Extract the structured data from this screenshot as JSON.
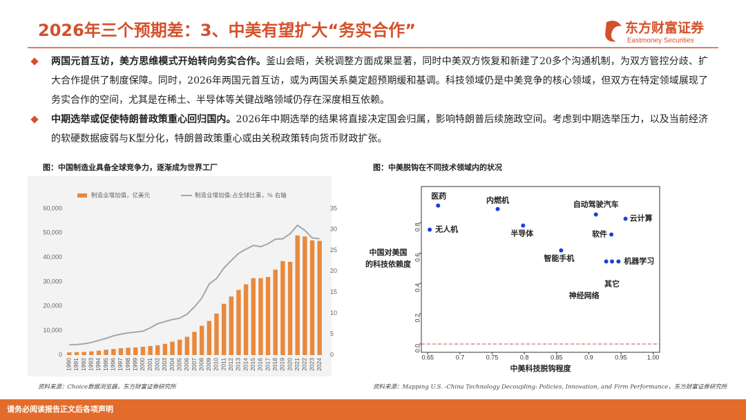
{
  "header": {
    "title": "2026年三个预期差：3、中美有望扩大“务实合作”",
    "logo": "东方财富证券",
    "logo_en": "Eastmoney Securities"
  },
  "bullets": [
    {
      "lead": "两国元首互访，美方思维模式开始转向务实合作。",
      "text": "釜山会晤，关税调整方面成果显著，同时中美双方恢复和新建了20多个沟通机制，为双方管控分歧、扩大合作提供了制度保障。同时，2026年两国元首互访，或为两国关系奠定超预期缓和基调。科技领域仍是中美竞争的核心领域，但双方在特定领域展现了务实合作的空间，尤其是在稀土、半导体等关键战略领域仍存在深度相互依赖。"
    },
    {
      "lead": "中期选举或促使特朗普政策重心回归国内。",
      "text": "2026年中期选举的结果将直接决定国会归属，影响特朗普后续施政空间。考虑到中期选举压力，以及当前经济的软硬数据疲弱与K型分化，特朗普政策重心或由关税政策转向货币财政扩张。"
    }
  ],
  "chart_data": [
    {
      "type": "combo",
      "title": "图：中国制造业具备全球竞争力，逐渐成为世界工厂",
      "source": "资料来源：Choice数据浏览器，东方财富证券研究所",
      "categories": [
        "1990",
        "1991",
        "1992",
        "1993",
        "1994",
        "1995",
        "1996",
        "1997",
        "1998",
        "1999",
        "2000",
        "2001",
        "2002",
        "2003",
        "2004",
        "2005",
        "2006",
        "2007",
        "2008",
        "2009",
        "2010",
        "2011",
        "2012",
        "2013",
        "2014",
        "2015",
        "2016",
        "2017",
        "2018",
        "2019",
        "2020",
        "2021",
        "2022",
        "2023",
        "2024"
      ],
      "series": [
        {
          "name": "制造业增加值，亿美元",
          "color": "#e8893c",
          "kind": "bar",
          "values": [
            1100,
            1200,
            1300,
            1500,
            1800,
            2200,
            2500,
            2800,
            3000,
            3100,
            3400,
            3700,
            4000,
            4600,
            5500,
            6300,
            7500,
            9500,
            12000,
            14000,
            17000,
            21000,
            24000,
            26700,
            29000,
            31500,
            31500,
            32000,
            35000,
            38500,
            38200,
            49000,
            48600,
            47000,
            46800
          ]
        },
        {
          "name": "制造业增加值:占全球比重，% 右轴",
          "color": "#a6a6a6",
          "kind": "line",
          "axis": "y2",
          "values": [
            2.5,
            2.5,
            2.7,
            3.0,
            3.5,
            4.0,
            4.6,
            5.0,
            5.3,
            5.5,
            5.7,
            6.5,
            7.5,
            8.0,
            8.5,
            8.8,
            9.8,
            11.5,
            13.6,
            17.0,
            18.3,
            20.8,
            22.6,
            24.3,
            25.3,
            26.2,
            25.9,
            26.6,
            27.7,
            27.8,
            29.0,
            31.0,
            29.8,
            28.0,
            27.8
          ]
        }
      ],
      "ylim": [
        0,
        60000
      ],
      "yticks": [
        0,
        {
          "value": 10000,
          "label": "10,000"
        },
        {
          "value": 20000,
          "label": "20,000"
        },
        {
          "value": 30000,
          "label": "30,000"
        },
        {
          "value": 40000,
          "label": "40,000"
        },
        {
          "value": 50000,
          "label": "50,000"
        },
        {
          "value": 60000,
          "label": "60,000"
        }
      ],
      "y2lim": [
        0,
        35
      ],
      "y2ticks": [
        0,
        5,
        10,
        15,
        20,
        25,
        30,
        35
      ]
    },
    {
      "type": "scatter",
      "title": "图：中美脱钩在不同技术领域内的状况",
      "source": "资料来源：Mapping U.S. -China Technology Decoupling: Policies, Innovation, and Firm Performance，东方财富证券研究所",
      "xlabel": "中美科技脱钩程度",
      "ylabel": [
        "中国对美国",
        "的科技依赖度"
      ],
      "labels": [
        "医药",
        "无人机",
        "内燃机",
        "半导体",
        "智能手机",
        "自动驾驶汽车",
        "云计算",
        "软件",
        "机器学习",
        "其它",
        "神经网络"
      ],
      "x": [
        0.666,
        0.653,
        0.7585,
        0.798,
        0.857,
        0.911,
        0.957,
        0.935,
        0.946,
        0.936,
        0.927
      ],
      "values": [
        0.914,
        0.755,
        0.891,
        0.782,
        0.618,
        0.855,
        0.827,
        0.723,
        0.545,
        0.545,
        0.545
      ],
      "color": "#1a3fd8",
      "hline": 0,
      "hline_color": "#e04040",
      "xlim": [
        0.64,
        1.01
      ],
      "xticks": [
        0.65,
        0.7,
        0.75,
        0.8,
        0.85,
        0.9,
        0.95,
        {
          "value": 1,
          "label": "1.00"
        }
      ],
      "ylim": [
        -0.055,
        1.04
      ],
      "yticks": [
        {
          "value": 0,
          "label": "0.0"
        },
        0.2,
        0.4,
        0.6,
        0.8
      ]
    }
  ],
  "footer": "请务必阅读报告正文后各项声明"
}
